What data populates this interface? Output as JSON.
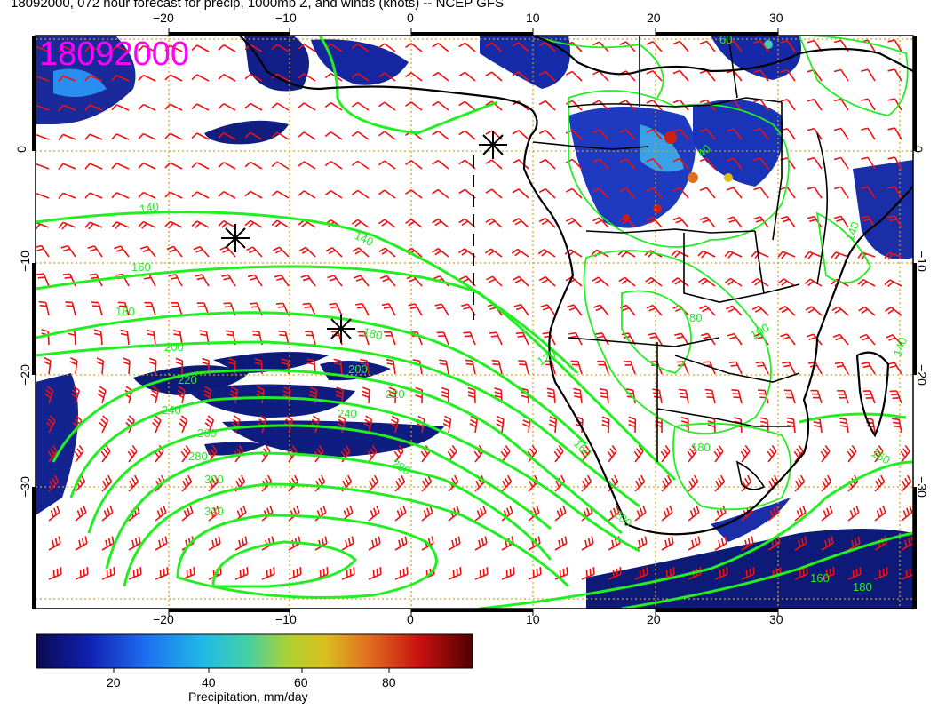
{
  "title": "18092000, 072 hour forecast for precip, 1000mb Z, and winds (knots) -- NCEP GFS",
  "stamp": "18092000",
  "axes": {
    "x_top_ticks": [
      "−20",
      "−10",
      "0",
      "10",
      "20",
      "30"
    ],
    "x_bottom_ticks": [
      "−20",
      "−10",
      "0",
      "10",
      "20",
      "30"
    ],
    "y_left_ticks": [
      "0",
      "−10",
      "−20",
      "−30"
    ],
    "y_right_ticks": [
      "0",
      "−10",
      "−20",
      "−30"
    ]
  },
  "contour_labels": [
    "140",
    "140",
    "160",
    "180",
    "180",
    "200",
    "200",
    "220",
    "220",
    "240",
    "240",
    "260",
    "280",
    "280",
    "300",
    "320",
    "120",
    "160",
    "180",
    "200",
    "160",
    "140",
    "80",
    "60",
    "40",
    "100",
    "140",
    "160",
    "180"
  ],
  "colorbar": {
    "title": "Precipitation, mm/day",
    "tick_labels": [
      "20",
      "40",
      "60",
      "80"
    ],
    "colors": [
      "#101060",
      "#1030c0",
      "#2080f0",
      "#20c0e0",
      "#40d0a0",
      "#a0d040",
      "#d0c020",
      "#e08020",
      "#d02010",
      "#600000"
    ]
  },
  "colors": {
    "stamp": "#ff00ff",
    "contours": "#22ee22",
    "wind_barbs": "#ee1111",
    "grid": "#d4a017",
    "coast": "#000000"
  }
}
